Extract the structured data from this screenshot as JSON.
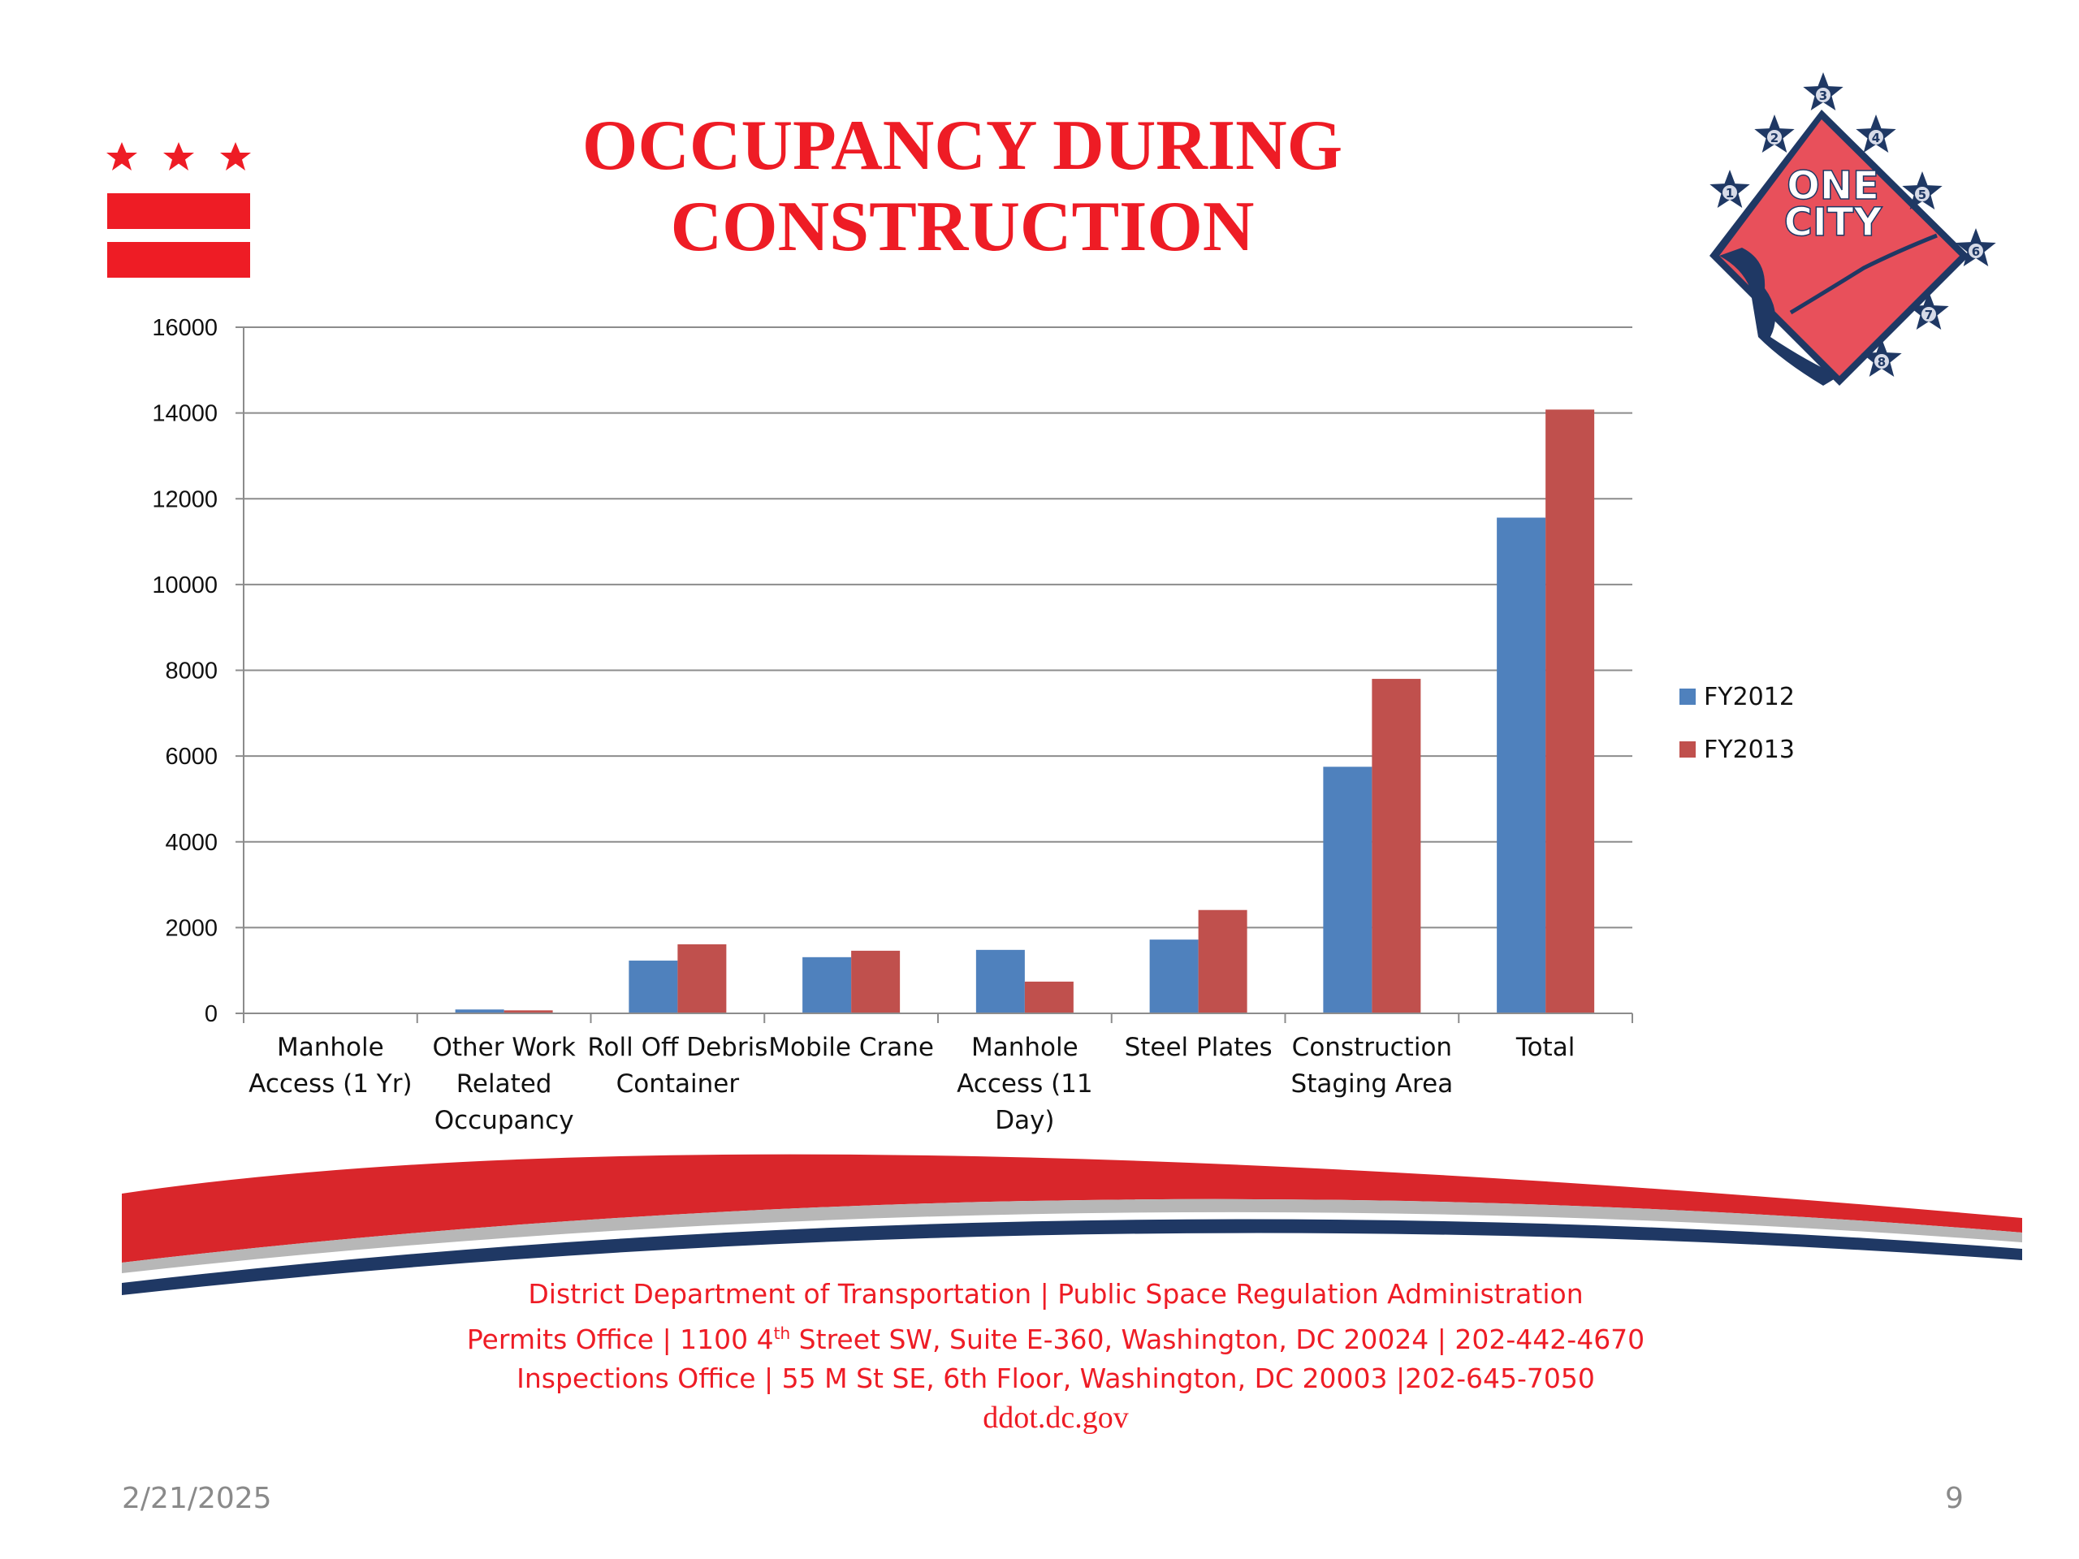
{
  "slide": {
    "title_line1": "OCCUPANCY  DURING",
    "title_line2": "CONSTRUCTION",
    "logo_text_top": "ONE",
    "logo_text_bottom": "CITY",
    "logo_star_numbers": [
      "1",
      "2",
      "3",
      "4",
      "5",
      "6",
      "7",
      "8"
    ],
    "footer": {
      "line1": "District Department of Transportation | Public Space Regulation Administration",
      "line2_a": "Permits Office | 1100 4",
      "line2_sup": "th",
      "line2_b": " Street SW, Suite E-360, Washington, DC 20024 | 202-442-4670",
      "line3": "Inspections Office | 55 M St SE, 6th Floor, Washington, DC 20003  |202-645-7050",
      "line4": "ddot.dc.gov"
    },
    "date": "2/21/2025",
    "page_number": "9"
  },
  "colors": {
    "title_red": "#ee1c25",
    "fy2012": "#4f81bd",
    "fy2013": "#c0504d",
    "swoosh_red": "#d9262b",
    "swoosh_navy": "#1f3864"
  },
  "chart_data": {
    "type": "bar",
    "categories": [
      [
        "Manhole",
        "Access (1 Yr)"
      ],
      [
        "Other Work",
        "Related",
        "Occupancy"
      ],
      [
        "Roll Off Debris",
        "Container"
      ],
      [
        "Mobile Crane"
      ],
      [
        "Manhole",
        "Access (11",
        "Day)"
      ],
      [
        "Steel Plates"
      ],
      [
        "Construction",
        "Staging Area"
      ],
      [
        "Total"
      ]
    ],
    "series": [
      {
        "name": "FY2012",
        "color": "#4f81bd",
        "values": [
          0,
          90,
          1230,
          1310,
          1480,
          1720,
          5750,
          11560
        ]
      },
      {
        "name": "FY2013",
        "color": "#c0504d",
        "values": [
          0,
          70,
          1610,
          1460,
          740,
          2410,
          7800,
          14080
        ]
      }
    ],
    "ylim": [
      0,
      16000
    ],
    "yticks": [
      "0",
      "2000",
      "4000",
      "6000",
      "8000",
      "10000",
      "12000",
      "14000",
      "16000"
    ],
    "grid": true,
    "legend": "right"
  }
}
